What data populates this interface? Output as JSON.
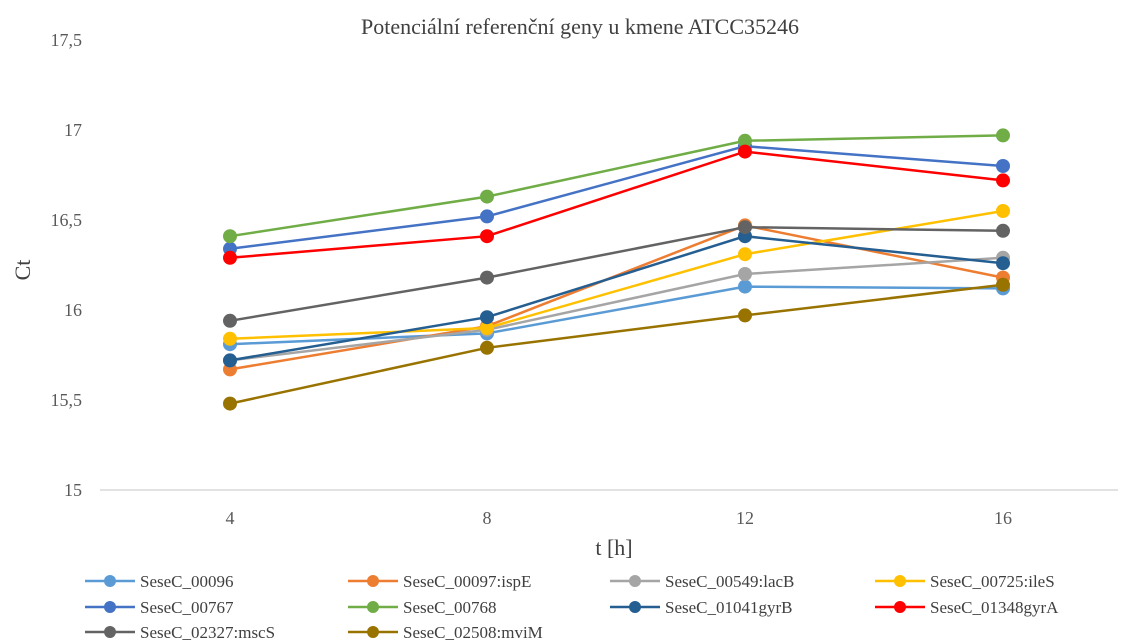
{
  "chart_data": {
    "type": "line",
    "title": "Potenciální referenční geny u kmene ATCC35246",
    "xlabel": "t [h]",
    "ylabel": "Ct",
    "categories": [
      "4",
      "8",
      "12",
      "16"
    ],
    "ylim": [
      15,
      17.5
    ],
    "yticks": [
      "15",
      "15,5",
      "16",
      "16,5",
      "17",
      "17,5"
    ],
    "ytick_values": [
      15,
      15.5,
      16,
      16.5,
      17,
      17.5
    ],
    "grid": false,
    "legend_position": "bottom",
    "series": [
      {
        "name": "SeseC_00096",
        "color": "#5B9BD5",
        "values": [
          15.81,
          15.87,
          16.13,
          16.12
        ]
      },
      {
        "name": "SeseC_00097:ispE",
        "color": "#ED7D31",
        "values": [
          15.67,
          15.91,
          16.47,
          16.18
        ]
      },
      {
        "name": "SeseC_00549:lacB",
        "color": "#A5A5A5",
        "values": [
          15.72,
          15.89,
          16.2,
          16.29
        ]
      },
      {
        "name": "SeseC_00725:ileS",
        "color": "#FFC000",
        "values": [
          15.84,
          15.9,
          16.31,
          16.55
        ]
      },
      {
        "name": "SeseC_00767",
        "color": "#4472C4",
        "values": [
          16.34,
          16.52,
          16.91,
          16.8
        ]
      },
      {
        "name": "SeseC_00768",
        "color": "#70AD47",
        "values": [
          16.41,
          16.63,
          16.94,
          16.97
        ]
      },
      {
        "name": "SeseC_01041gyrB",
        "color": "#255E91",
        "values": [
          15.72,
          15.96,
          16.41,
          16.26
        ]
      },
      {
        "name": "SeseC_01348gyrA",
        "color": "#FF0000",
        "values": [
          16.29,
          16.41,
          16.88,
          16.72
        ]
      },
      {
        "name": "SeseC_02327:mscS",
        "color": "#636363",
        "values": [
          15.94,
          16.18,
          16.46,
          16.44
        ]
      },
      {
        "name": "SeseC_02508:mviM",
        "color": "#997300",
        "values": [
          15.48,
          15.79,
          15.97,
          16.14
        ]
      }
    ]
  }
}
